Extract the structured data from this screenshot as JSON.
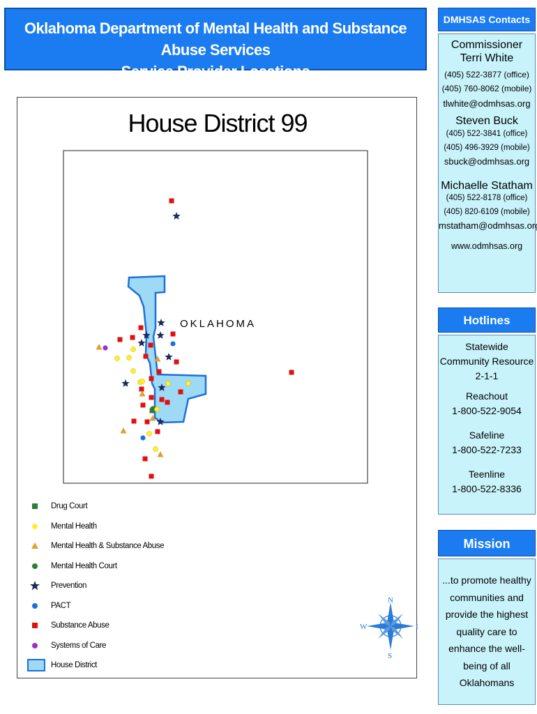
{
  "header": {
    "line1": "Oklahoma Department of Mental Health and Substance Abuse Services",
    "line2": "Service Provider Locations"
  },
  "contacts": {
    "title": "DMHSAS Contacts",
    "commissioner_role": "Commissioner",
    "commissioner_name": "Terri White",
    "commissioner_office": "(405) 522-3877 (office)",
    "commissioner_mobile": "(405) 760-8062 (mobile)",
    "commissioner_email": "tlwhite@odmhsas.org",
    "buck_name": "Steven Buck",
    "buck_office": "(405) 522-3841 (office)",
    "buck_mobile": "(405) 496-3929 (mobile)",
    "buck_email": "sbuck@odmhsas.org",
    "statham_name": "Michaelle Statham",
    "statham_office": "(405) 522-8178 (office)",
    "statham_mobile": "(405) 820-6109 (mobile)",
    "statham_email": "mstatham@odmhsas.org",
    "website": "www.odmhsas.org"
  },
  "hotlines": {
    "title": "Hotlines",
    "statewide_1": "Statewide",
    "statewide_2": "Community Resource",
    "statewide_number": "2-1-1",
    "reachout_name": "Reachout",
    "reachout_number": "1-800-522-9054",
    "safeline_name": "Safeline",
    "safeline_number": "1-800-522-7233",
    "teenline_name": "Teenline",
    "teenline_number": "1-800-522-8336"
  },
  "mission": {
    "title": "Mission",
    "lines": [
      "...to promote healthy",
      "communities and",
      "provide the highest",
      "quality care to",
      "enhance the well-",
      "being of all",
      "Oklahomans"
    ]
  },
  "map": {
    "title": "House District 99",
    "state_label": "OKLAHOMA",
    "compass": {
      "n": "N",
      "s": "S",
      "e": "E",
      "w": "W"
    },
    "colors": {
      "drug_court": "#2e7d32",
      "mental_health": "#ffee33",
      "mh_sa": "#e0a030",
      "mh_court": "#2e7d32",
      "prevention": "#1a2a5a",
      "pact": "#1e6fd9",
      "substance_abuse": "#e01010",
      "systems_of_care": "#9b30c8",
      "house_district": "#9ed9f5"
    }
  },
  "legend": [
    "Drug Court",
    "Mental Health",
    "Mental Health & Substance Abuse",
    "Mental Health Court",
    "Prevention",
    "PACT",
    "Substance Abuse",
    "Systems of Care",
    "House District"
  ]
}
